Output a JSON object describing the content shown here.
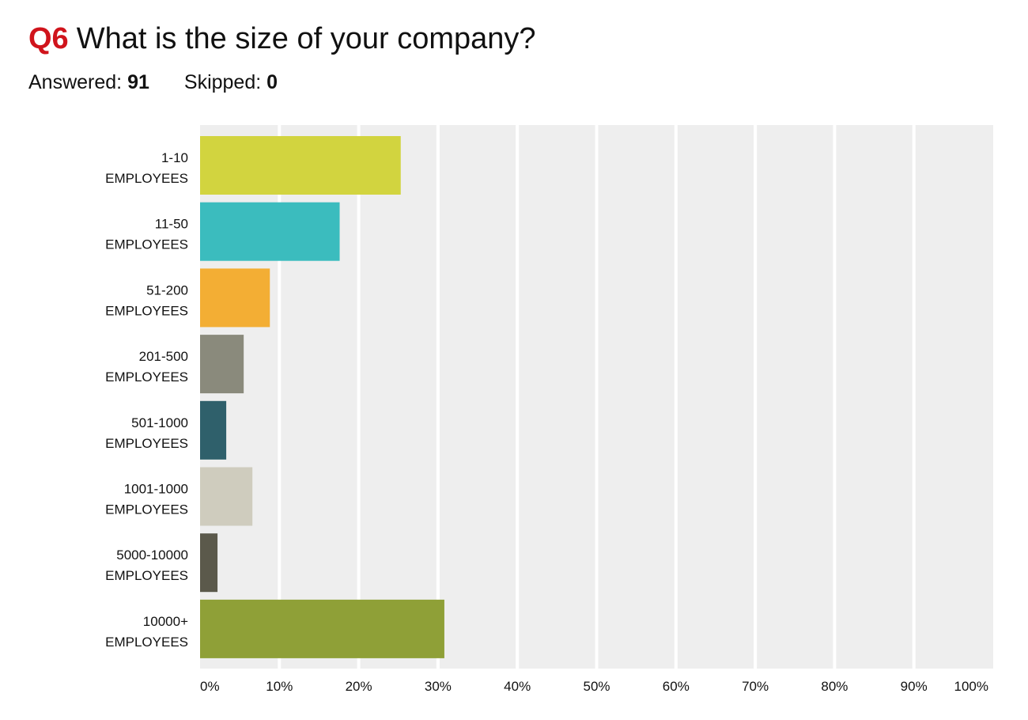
{
  "header": {
    "question_number": "Q6",
    "question_text": "What is the size of your company?",
    "answered_label": "Answered:",
    "answered_value": "91",
    "skipped_label": "Skipped:",
    "skipped_value": "0"
  },
  "chart_data": {
    "type": "bar",
    "orientation": "horizontal",
    "categories": [
      [
        "1-10",
        "EMPLOYEES"
      ],
      [
        "11-50",
        "EMPLOYEES"
      ],
      [
        "51-200",
        "EMPLOYEES"
      ],
      [
        "201-500",
        "EMPLOYEES"
      ],
      [
        "501-1000",
        "EMPLOYEES"
      ],
      [
        "1001-1000",
        "EMPLOYEES"
      ],
      [
        "5000-10000",
        "EMPLOYEES"
      ],
      [
        "10000+",
        "EMPLOYEES"
      ]
    ],
    "values": [
      25.3,
      17.6,
      8.8,
      5.5,
      3.3,
      6.6,
      2.2,
      30.8
    ],
    "colors": [
      "#d2d43f",
      "#3bbcbe",
      "#f3ae34",
      "#8a8a7c",
      "#2f606b",
      "#cfccbe",
      "#5b594b",
      "#8fa037"
    ],
    "xlim": [
      0,
      100
    ],
    "ticks": [
      "0%",
      "10%",
      "20%",
      "30%",
      "40%",
      "50%",
      "60%",
      "70%",
      "80%",
      "90%",
      "100%"
    ],
    "grid": true,
    "background": "#eeeeee"
  }
}
